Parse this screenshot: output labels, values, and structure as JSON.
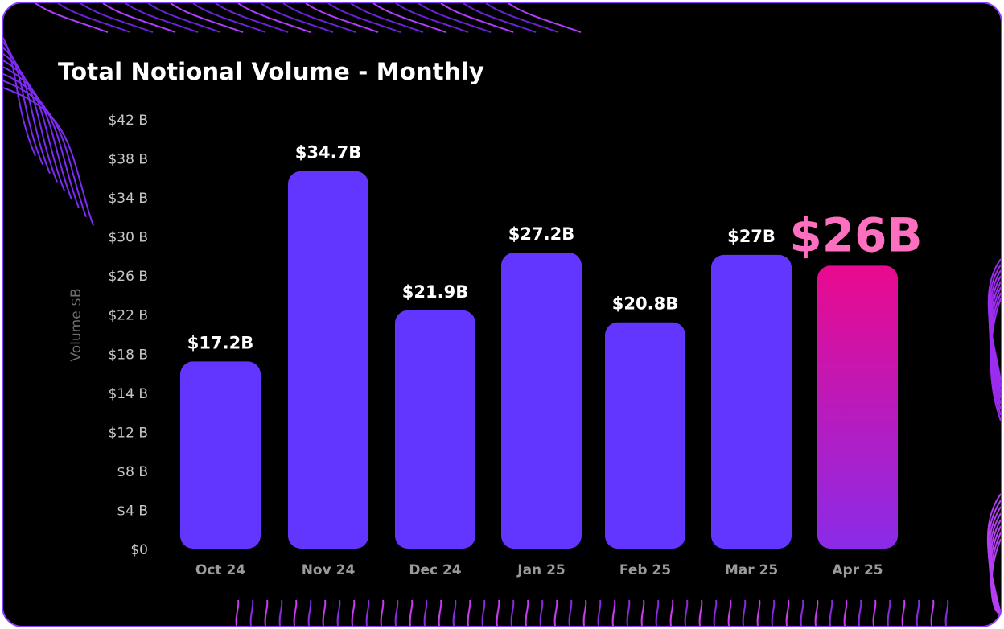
{
  "chart_data": {
    "type": "bar",
    "title": "Total Notional Volume - Monthly",
    "xlabel": "",
    "ylabel": "Volume $B",
    "ylim": [
      0,
      42
    ],
    "yticks": [
      0,
      4,
      8,
      12,
      14,
      18,
      22,
      26,
      30,
      34,
      38,
      42
    ],
    "ytick_labels": [
      "$0",
      "$4 B",
      "$8 B",
      "$12 B",
      "$14 B",
      "$18 B",
      "$22 B",
      "$26 B",
      "$30 B",
      "$34 B",
      "$38 B",
      "$42 B"
    ],
    "categories": [
      "Oct 24",
      "Nov 24",
      "Dec 24",
      "Jan 25",
      "Feb 25",
      "Mar 25",
      "Apr 25"
    ],
    "values": [
      17.2,
      34.7,
      21.9,
      27.2,
      20.8,
      27,
      26
    ],
    "data_labels": [
      "$17.2B",
      "$34.7B",
      "$21.9B",
      "$27.2B",
      "$20.8B",
      "$27B",
      "$26B"
    ],
    "highlight_index": 6,
    "colors": {
      "bar": "#6236ff",
      "highlight_top": "#ea0a8e",
      "highlight_bottom": "#8a2be8",
      "highlight_label": "#ff6fbf",
      "accent": "#8b3dff"
    }
  }
}
